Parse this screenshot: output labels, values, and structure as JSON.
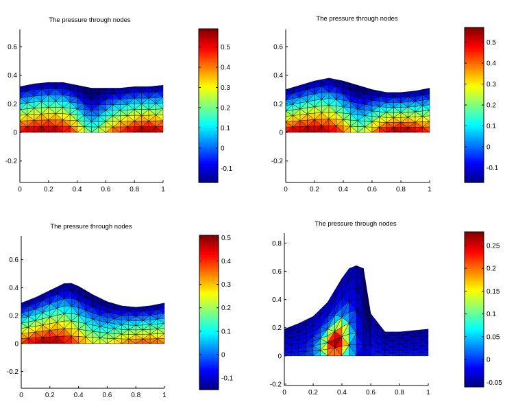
{
  "chart_data": [
    {
      "type": "heatmap",
      "title": "The pressure through nodes",
      "xlim": [
        0,
        1
      ],
      "ylim": [
        -0.35,
        0.72
      ],
      "xticks": [
        0,
        0.2,
        0.4,
        0.6,
        0.8,
        1
      ],
      "yticks": [
        -0.2,
        0,
        0.2,
        0.4,
        0.6
      ],
      "surface": {
        "x": [
          0,
          0.1,
          0.2,
          0.3,
          0.4,
          0.5,
          0.6,
          0.7,
          0.8,
          0.9,
          1.0
        ],
        "y": [
          0.32,
          0.34,
          0.35,
          0.35,
          0.33,
          0.31,
          0.31,
          0.31,
          0.32,
          0.32,
          0.33
        ]
      },
      "colorbar": {
        "range": [
          -0.17,
          0.59
        ],
        "ticks": [
          -0.1,
          0,
          0.1,
          0.2,
          0.3,
          0.4,
          0.5
        ]
      }
    },
    {
      "type": "heatmap",
      "title": "The pressure through nodes",
      "xlim": [
        0,
        1
      ],
      "ylim": [
        -0.35,
        0.72
      ],
      "xticks": [
        0,
        0.2,
        0.4,
        0.6,
        0.8,
        1
      ],
      "yticks": [
        -0.2,
        0,
        0.2,
        0.4,
        0.6
      ],
      "surface": {
        "x": [
          0,
          0.1,
          0.2,
          0.3,
          0.4,
          0.5,
          0.6,
          0.7,
          0.8,
          0.9,
          1.0
        ],
        "y": [
          0.3,
          0.33,
          0.36,
          0.38,
          0.36,
          0.33,
          0.3,
          0.28,
          0.28,
          0.29,
          0.31
        ]
      },
      "colorbar": {
        "range": [
          -0.17,
          0.57
        ],
        "ticks": [
          -0.1,
          0,
          0.1,
          0.2,
          0.3,
          0.4,
          0.5
        ]
      }
    },
    {
      "type": "heatmap",
      "title": "The pressure through nodes",
      "xlim": [
        0,
        1
      ],
      "ylim": [
        -0.32,
        0.77
      ],
      "xticks": [
        0,
        0.2,
        0.4,
        0.6,
        0.8,
        1
      ],
      "yticks": [
        -0.2,
        0,
        0.2,
        0.4,
        0.6
      ],
      "surface": {
        "x": [
          0,
          0.1,
          0.2,
          0.3,
          0.33,
          0.4,
          0.5,
          0.6,
          0.7,
          0.8,
          0.9,
          1.0
        ],
        "y": [
          0.29,
          0.33,
          0.38,
          0.43,
          0.44,
          0.41,
          0.35,
          0.3,
          0.27,
          0.26,
          0.27,
          0.29
        ]
      },
      "colorbar": {
        "range": [
          -0.15,
          0.51
        ],
        "ticks": [
          -0.1,
          0,
          0.1,
          0.2,
          0.3,
          0.4,
          0.5
        ]
      }
    },
    {
      "type": "heatmap",
      "title": "The pressure through nodes",
      "xlim": [
        0,
        1
      ],
      "ylim": [
        -0.21,
        0.87
      ],
      "xticks": [
        0,
        0.2,
        0.4,
        0.6,
        0.8,
        1
      ],
      "yticks": [
        -0.2,
        0,
        0.2,
        0.4,
        0.6,
        0.8
      ],
      "surface": {
        "x": [
          0,
          0.1,
          0.2,
          0.3,
          0.4,
          0.45,
          0.5,
          0.55,
          0.6,
          0.7,
          0.8,
          0.9,
          1.0
        ],
        "y": [
          0.19,
          0.23,
          0.28,
          0.38,
          0.55,
          0.62,
          0.64,
          0.62,
          0.3,
          0.17,
          0.17,
          0.18,
          0.19
        ]
      },
      "colorbar": {
        "range": [
          -0.06,
          0.28
        ],
        "ticks": [
          -0.05,
          0,
          0.05,
          0.1,
          0.15,
          0.2,
          0.25
        ]
      }
    }
  ]
}
